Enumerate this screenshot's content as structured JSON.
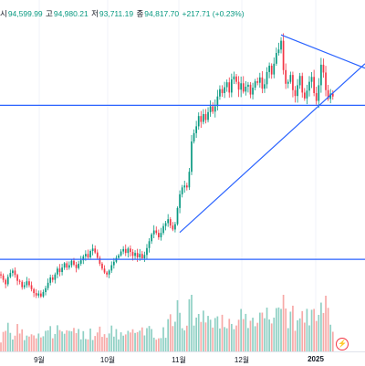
{
  "ohlc_header": {
    "open_label": "시",
    "open": "94,599.99",
    "high_label": "고",
    "high": "94,980.21",
    "low_label": "저",
    "low": "93,711.19",
    "close_label": "종",
    "close": "94,817.70",
    "change": "+217.71 (+0.23%)"
  },
  "colors": {
    "up": "#089981",
    "down": "#f23645",
    "up_volume": "#8fd0c4",
    "down_volume": "#f7a9a7",
    "trendline": "#2962ff"
  },
  "chart_data": {
    "type": "candlestick",
    "x_axis": {
      "ticks": [
        "9월",
        "10월",
        "11월",
        "12월",
        "2025"
      ]
    },
    "price_range_approx": [
      52000,
      108000
    ],
    "horizontal_levels_approx": [
      61500,
      93000
    ],
    "trendlines": [
      {
        "from": [
          "11월 초",
          67000
        ],
        "to": [
          "2025-01 중순",
          106000
        ]
      },
      {
        "from": [
          "12월 중순",
          107500
        ],
        "to": [
          "2025-01 중순",
          98000
        ]
      }
    ],
    "series_close_approx": [
      58200,
      57300,
      56400,
      57900,
      58700,
      59200,
      58300,
      57100,
      56900,
      55800,
      56200,
      57000,
      56200,
      55400,
      54600,
      54100,
      54500,
      53900,
      54800,
      55600,
      56700,
      57800,
      57300,
      58400,
      59600,
      58900,
      59800,
      60700,
      59800,
      60300,
      61200,
      60400,
      59700,
      60600,
      61300,
      62100,
      62600,
      61900,
      63200,
      63700,
      62900,
      61800,
      60600,
      59600,
      58800,
      58400,
      59200,
      60300,
      61000,
      61800,
      62300,
      63100,
      63600,
      62800,
      63700,
      63000,
      62200,
      62800,
      61900,
      62600,
      61700,
      62400,
      63800,
      65200,
      66600,
      67400,
      66900,
      66000,
      66900,
      68300,
      68900,
      69700,
      68400,
      67600,
      68700,
      72000,
      74800,
      76200,
      76600,
      76200,
      79400,
      85600,
      87300,
      88700,
      90800,
      89600,
      91200,
      90000,
      91600,
      92800,
      91700,
      92800,
      94800,
      96300,
      95500,
      96700,
      97700,
      95600,
      98300,
      98900,
      97800,
      96200,
      97500,
      95800,
      96800,
      97200,
      95200,
      96600,
      97900,
      97600,
      98700,
      96400,
      97300,
      99800,
      101100,
      99300,
      101500,
      103700,
      104400,
      106200,
      100200,
      97400,
      97800,
      99200,
      96100,
      94900,
      97100,
      99000,
      95600,
      94400,
      96000,
      97800,
      98800,
      95500,
      93900,
      97100,
      101300,
      99700,
      96100,
      94300,
      95400,
      94800
    ]
  }
}
